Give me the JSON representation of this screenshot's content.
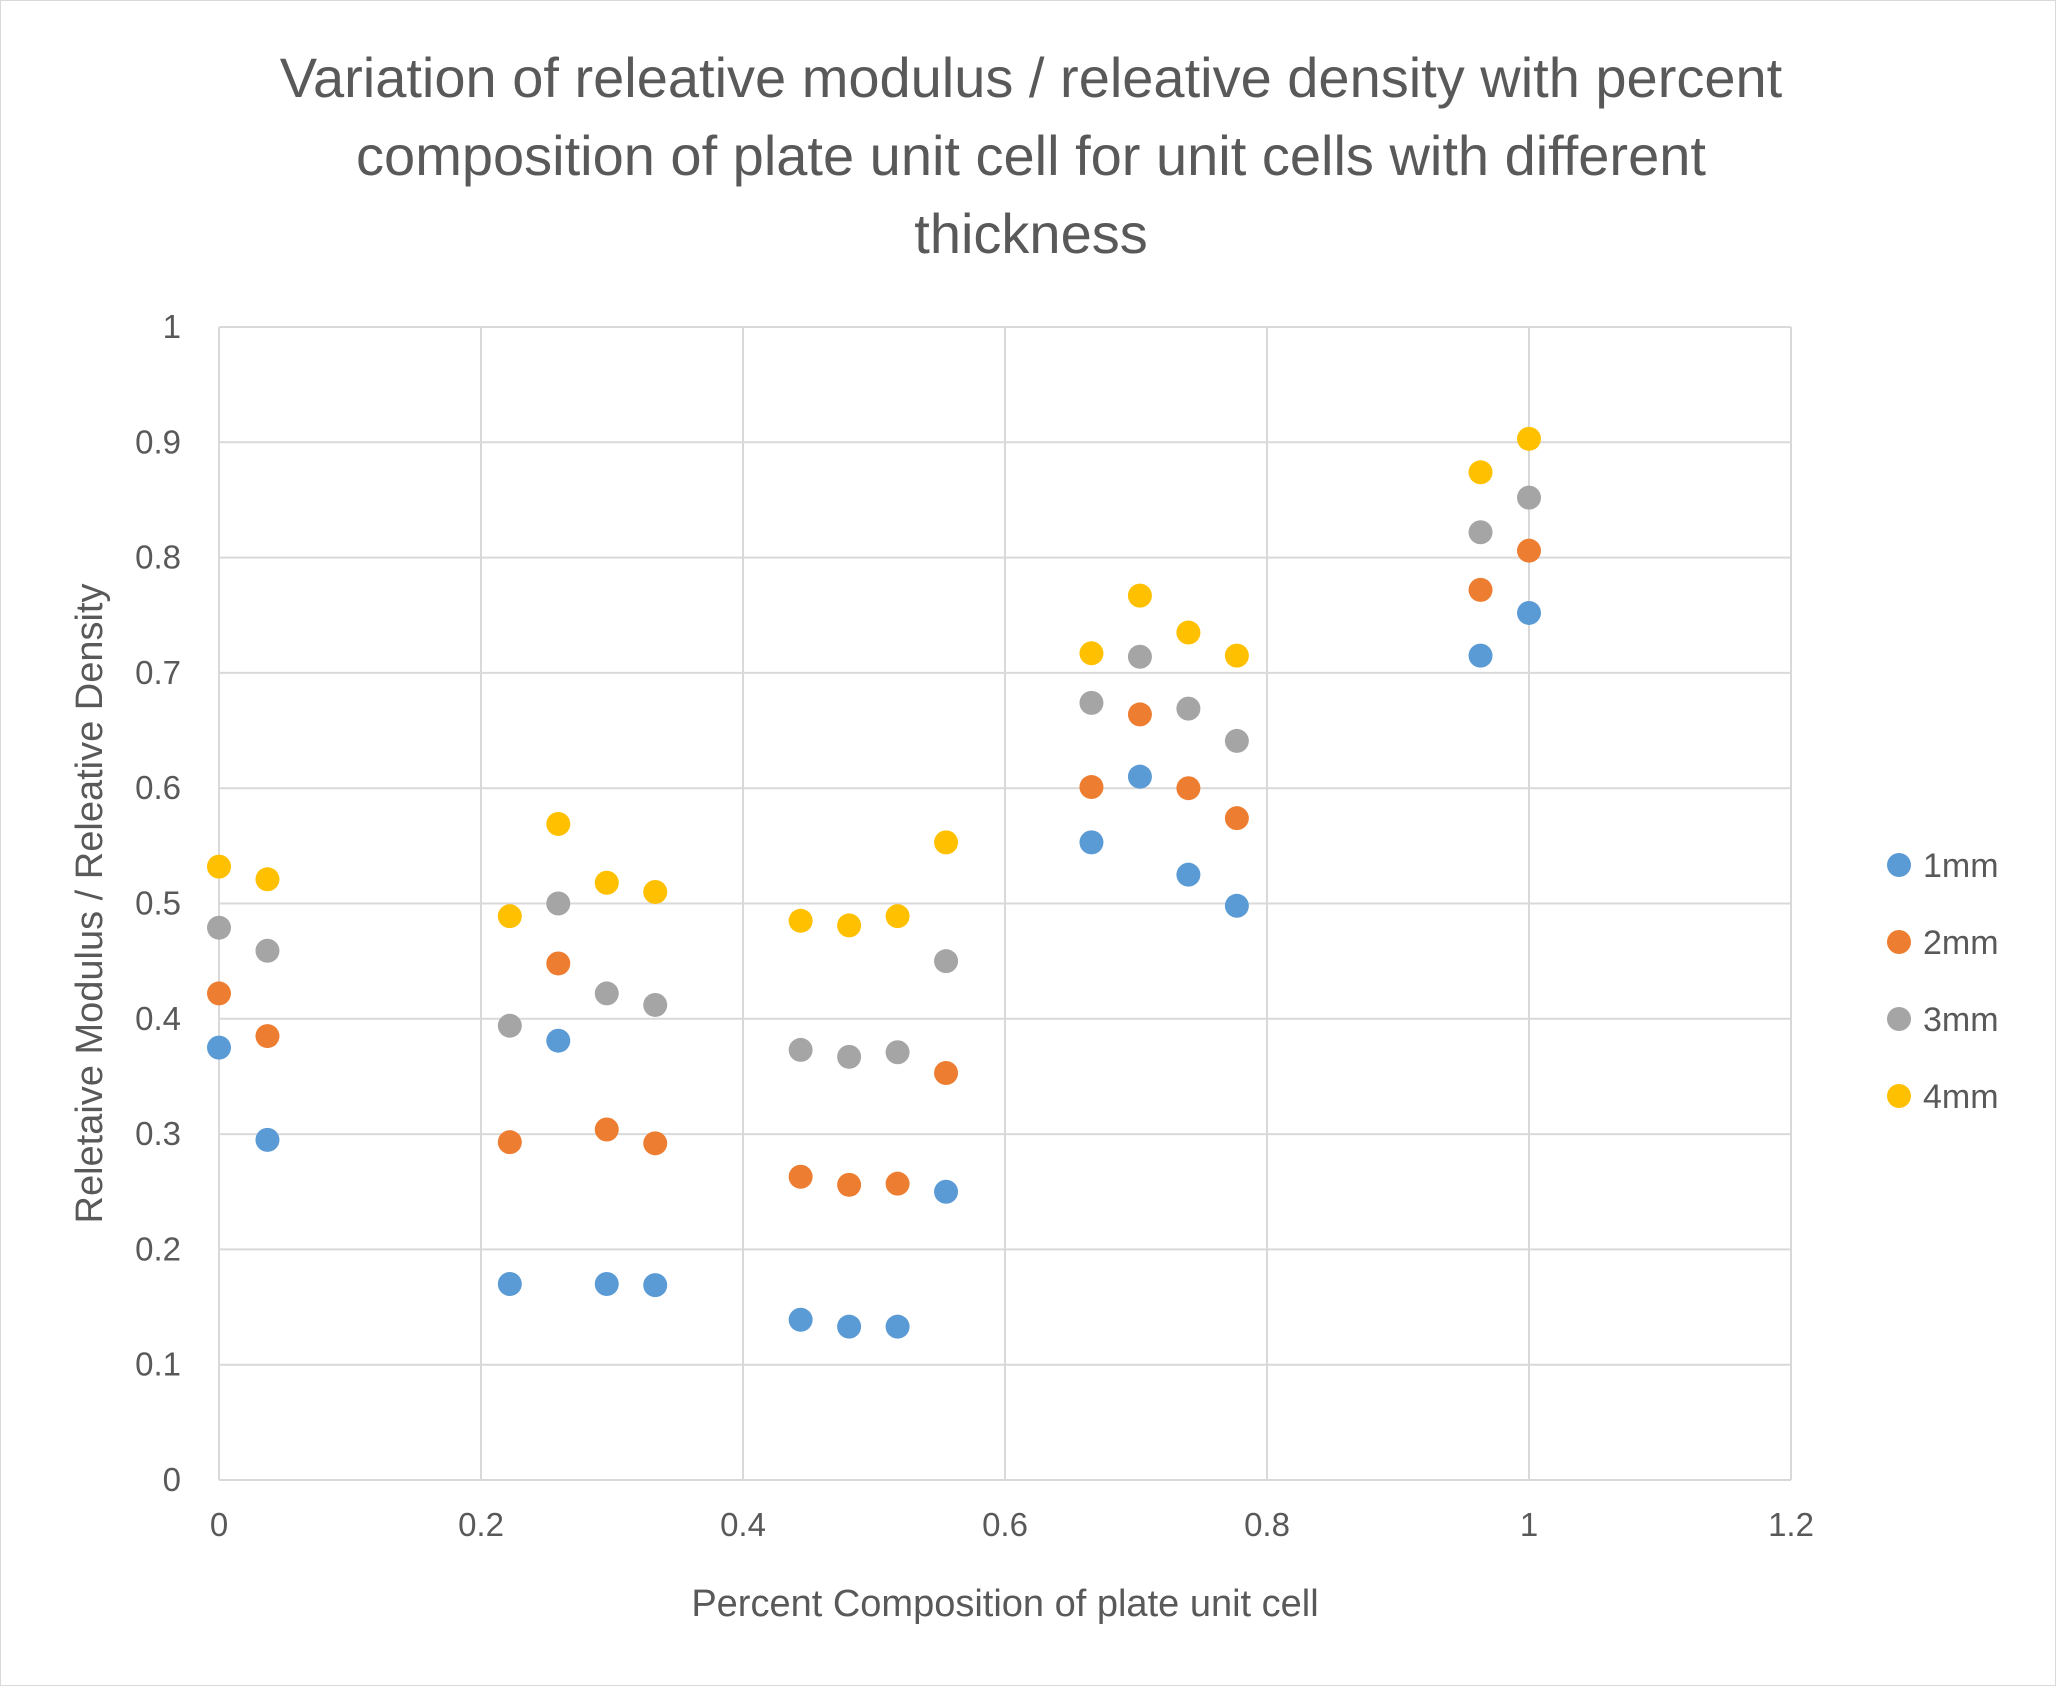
{
  "chart_data": {
    "type": "scatter",
    "title_lines": [
      "Variation of releative modulus / releative density with percent",
      "composition of plate unit cell for unit cells with different",
      "thickness"
    ],
    "xlabel": "Percent Composition of plate unit cell",
    "ylabel": "Reletaive Modulus / Releative Density",
    "xlim": [
      0,
      1.2
    ],
    "ylim": [
      0,
      1
    ],
    "x_ticks": [
      0,
      0.2,
      0.4,
      0.6,
      0.8,
      1,
      1.2
    ],
    "x_tick_labels": [
      "0",
      "0.2",
      "0.4",
      "0.6",
      "0.8",
      "1",
      "1.2"
    ],
    "y_ticks": [
      0,
      0.1,
      0.2,
      0.3,
      0.4,
      0.5,
      0.6,
      0.7,
      0.8,
      0.9,
      1
    ],
    "y_tick_labels": [
      "0",
      "0.1",
      "0.2",
      "0.3",
      "0.4",
      "0.5",
      "0.6",
      "0.7",
      "0.8",
      "0.9",
      "1"
    ],
    "grid": true,
    "legend_position": "right",
    "x": [
      0,
      0.037,
      0.222,
      0.259,
      0.296,
      0.333,
      0.444,
      0.481,
      0.518,
      0.555,
      0.666,
      0.703,
      0.74,
      0.777,
      0.963,
      1.0
    ],
    "series": [
      {
        "name": "1mm",
        "color": "#5b9bd5",
        "values": [
          0.375,
          0.295,
          0.17,
          0.381,
          0.17,
          0.169,
          0.139,
          0.133,
          0.133,
          0.25,
          0.553,
          0.61,
          0.525,
          0.498,
          0.715,
          0.752
        ]
      },
      {
        "name": "2mm",
        "color": "#ed7d31",
        "values": [
          0.422,
          0.385,
          0.293,
          0.448,
          0.304,
          0.292,
          0.263,
          0.256,
          0.257,
          0.353,
          0.601,
          0.664,
          0.6,
          0.574,
          0.772,
          0.806
        ]
      },
      {
        "name": "3mm",
        "color": "#a5a5a5",
        "values": [
          0.479,
          0.459,
          0.394,
          0.5,
          0.422,
          0.412,
          0.373,
          0.367,
          0.371,
          0.45,
          0.674,
          0.714,
          0.669,
          0.641,
          0.822,
          0.852
        ]
      },
      {
        "name": "4mm",
        "color": "#ffc000",
        "values": [
          0.532,
          0.521,
          0.489,
          0.569,
          0.518,
          0.51,
          0.485,
          0.481,
          0.489,
          0.553,
          0.717,
          0.767,
          0.735,
          0.715,
          0.874,
          0.903
        ]
      }
    ]
  },
  "colors": {
    "grid": "#d9d9d9",
    "text": "#595959"
  }
}
